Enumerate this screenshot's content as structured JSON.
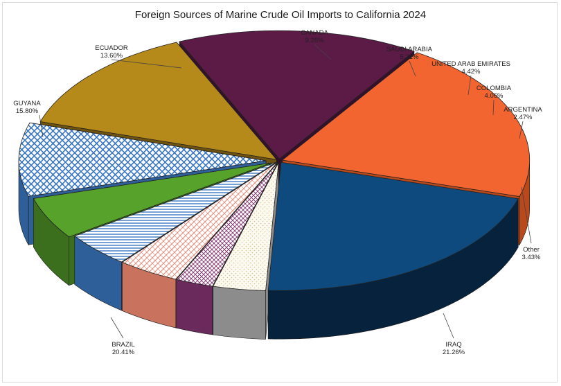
{
  "chart_data": {
    "type": "pie",
    "title": "Foreign Sources of Marine Crude Oil Imports to California 2024",
    "slices": [
      {
        "name": "IRAQ",
        "value": 21.26,
        "label": "21.26%",
        "color": "#0e4a7d",
        "side": "#07223d",
        "pattern": "solid"
      },
      {
        "name": "BRAZIL",
        "value": 20.41,
        "label": "20.41%",
        "color": "#f26531",
        "side": "#b9481b",
        "pattern": "solid"
      },
      {
        "name": "GUYANA",
        "value": 15.8,
        "label": "15.80%",
        "color": "#5c1a47",
        "side": "#35102a",
        "pattern": "solid"
      },
      {
        "name": "ECUADOR",
        "value": 13.6,
        "label": "13.60%",
        "color": "#b5891a",
        "side": "#6e5210",
        "pattern": "solid"
      },
      {
        "name": "CANADA",
        "value": 9.26,
        "label": "9.26%",
        "color": "#ffffff",
        "fg": "#3b78c2",
        "side": "#2f5f99",
        "pattern": "diamond"
      },
      {
        "name": "SAUDI ARABIA",
        "value": 5.31,
        "label": "5.31%",
        "color": "#56a22a",
        "side": "#3c6f1d",
        "pattern": "solid"
      },
      {
        "name": "UNITED ARAB EMIRATES",
        "value": 4.42,
        "label": "4.42%",
        "color": "#ffffff",
        "fg": "#3b78c2",
        "side": "#2f5f99",
        "pattern": "hlines"
      },
      {
        "name": "COLOMBIA",
        "value": 4.06,
        "label": "4.06%",
        "color": "#ffffff",
        "fg": "#e8806b",
        "side": "#c9735e",
        "pattern": "brick"
      },
      {
        "name": "ARGENTINA",
        "value": 2.47,
        "label": "2.47%",
        "color": "#ffffff",
        "fg": "#7a2e6b",
        "side": "#6a2a5c",
        "pattern": "grid"
      },
      {
        "name": "Other",
        "value": 3.43,
        "label": "3.43%",
        "color": "#ffffff",
        "fg": "#d9c28c",
        "side": "#8c8c8c",
        "pattern": "dots"
      }
    ]
  }
}
